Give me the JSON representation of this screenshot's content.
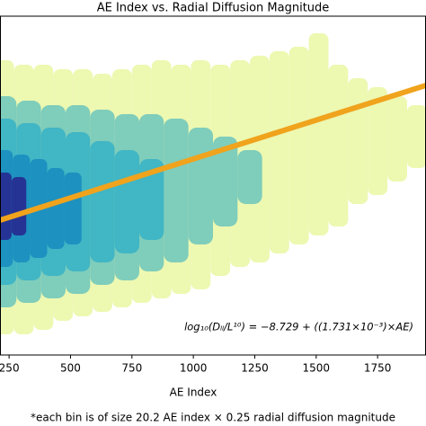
{
  "chart_data": {
    "type": "hexbin",
    "title": "AE Index vs. Radial Diffusion Magnitude",
    "xlabel": "AE Index",
    "xlim": [
      213,
      1947
    ],
    "xticks": [
      250,
      500,
      750,
      1000,
      1250,
      1500,
      1750
    ],
    "ylim": [
      -11.36,
      -3.82
    ],
    "bins": [
      {
        "color": "#edf8b1",
        "x": [
          230,
          310,
          390,
          470,
          550,
          630,
          710,
          790,
          870,
          950,
          1030,
          1110,
          1190,
          1270,
          1350,
          1430,
          1510,
          1590,
          1670,
          1750,
          1830,
          1910
        ],
        "y0": [
          -10.9,
          -10.9,
          -10.8,
          -10.6,
          -10.5,
          -10.4,
          -10.3,
          -10.2,
          -10.1,
          -10.0,
          -9.9,
          -9.6,
          -9.4,
          -9.3,
          -9.1,
          -8.9,
          -8.7,
          -8.5,
          -8.0,
          -7.8,
          -7.5,
          -7.2
        ],
        "y1": [
          -4.8,
          -4.9,
          -4.9,
          -5.0,
          -5.0,
          -5.1,
          -5.0,
          -4.9,
          -4.8,
          -4.9,
          -4.8,
          -4.9,
          -4.8,
          -4.7,
          -4.6,
          -4.5,
          -4.2,
          -4.9,
          -5.2,
          -5.4,
          -5.6,
          -5.8
        ]
      },
      {
        "color": "#7fcdbb",
        "x": [
          230,
          330,
          430,
          530,
          630,
          730,
          830,
          930,
          1030,
          1130,
          1230
        ],
        "y0": [
          -10.3,
          -10.2,
          -10.1,
          -10.0,
          -9.8,
          -9.7,
          -9.5,
          -9.3,
          -8.9,
          -8.5,
          -8.0
        ],
        "y1": [
          -5.6,
          -5.7,
          -5.8,
          -5.8,
          -5.9,
          -6.0,
          -6.0,
          -6.1,
          -6.3,
          -6.5,
          -6.8
        ]
      },
      {
        "color": "#41b6c4",
        "x": [
          230,
          330,
          430,
          530,
          630,
          730,
          830
        ],
        "y0": [
          -9.8,
          -9.7,
          -9.6,
          -9.5,
          -9.3,
          -9.1,
          -8.8
        ],
        "y1": [
          -6.1,
          -6.2,
          -6.3,
          -6.4,
          -6.6,
          -6.8,
          -7.0
        ]
      },
      {
        "color": "#1d91c0",
        "x": [
          230,
          300,
          370,
          440,
          510
        ],
        "y0": [
          -9.4,
          -9.3,
          -9.2,
          -9.0,
          -8.9
        ],
        "y1": [
          -6.8,
          -6.9,
          -7.0,
          -7.2,
          -7.3
        ]
      },
      {
        "color": "#253494",
        "x": [
          230,
          290
        ],
        "y0": [
          -8.8,
          -8.7
        ],
        "y1": [
          -7.3,
          -7.4
        ]
      }
    ],
    "fit": {
      "intercept": -8.729,
      "slope": 0.001731,
      "color": "#f0a31c"
    },
    "annotation": "log₁₀(Dₗₗ/L¹⁰) = −8.729 + ((1.731×10⁻³)×AE)",
    "footnote": "*each bin is of size 20.2 AE index × 0.25 radial diffusion magnitude"
  }
}
